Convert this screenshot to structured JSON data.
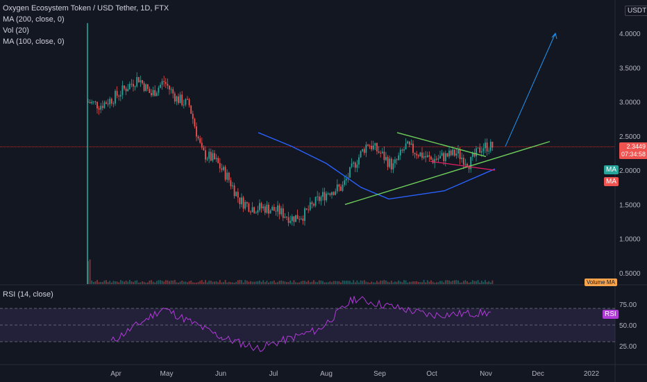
{
  "header": {
    "symbol_title": "Oxygen Ecosystem Token / USD Tether, 1D, FTX",
    "currency_label": "USDT"
  },
  "indicators": {
    "ma200": "MA (200, close, 0)",
    "vol": "Vol (20)",
    "ma100": "MA (100, close, 0)",
    "rsi": "RSI (14, close)"
  },
  "badges": {
    "ma_a": "MA",
    "ma_b": "MA",
    "rsi": "RSI",
    "volume_ma": "Volume MA"
  },
  "price_tag": {
    "price": "2.3449",
    "countdown": "07:34:58"
  },
  "colors": {
    "background": "#131722",
    "up": "#26a69a",
    "down": "#ef5350",
    "ma_blue": "#2962ff",
    "trend_green": "#6fd15a",
    "rsi_line": "#b13ad9",
    "arrow": "#2196f3"
  },
  "chart_data": [
    {
      "type": "candlestick",
      "series": [
        {
          "name": "Oxygen Ecosystem Token / USD Tether",
          "x": [
            "Mar 29",
            "Apr 5",
            "Apr 12",
            "Apr 19",
            "Apr 26",
            "May 3",
            "May 10",
            "May 17",
            "May 24",
            "May 31",
            "Jun 7",
            "Jun 14",
            "Jun 21",
            "Jun 28",
            "Jul 5",
            "Jul 12",
            "Jul 19",
            "Jul 26",
            "Aug 2",
            "Aug 9",
            "Aug 16",
            "Aug 23",
            "Aug 30",
            "Sep 6",
            "Sep 13",
            "Sep 20",
            "Sep 27",
            "Oct 4",
            "Oct 11",
            "Oct 18",
            "Oct 25",
            "Nov 1",
            "Nov 5"
          ],
          "close": [
            3.0,
            2.95,
            3.05,
            3.2,
            3.35,
            3.1,
            3.3,
            3.05,
            2.95,
            2.25,
            2.15,
            1.9,
            1.55,
            1.45,
            1.45,
            1.4,
            1.3,
            1.35,
            1.55,
            1.7,
            1.75,
            2.1,
            2.4,
            2.25,
            2.05,
            2.35,
            2.25,
            2.15,
            2.2,
            2.25,
            2.1,
            2.35,
            2.3449
          ]
        },
        {
          "name": "MA (200, close, 0)",
          "x": [
            "Jun 28",
            "Jul 19",
            "Aug 9",
            "Aug 30",
            "Sep 20",
            "Oct 11",
            "Nov 5"
          ],
          "y": [
            2.55,
            2.35,
            2.1,
            1.75,
            1.58,
            1.7,
            2.02
          ]
        },
        {
          "name": "Vol (20)"
        }
      ],
      "xticks": [
        "Apr",
        "May",
        "Jun",
        "Jul",
        "Aug",
        "Sep",
        "Oct",
        "Nov",
        "Dec",
        "2022"
      ],
      "yticks": [
        0.5,
        1.0,
        1.5,
        2.0,
        2.5,
        3.0,
        3.5,
        4.0
      ],
      "ylim": [
        0.3,
        4.2
      ],
      "last_price": 2.3449
    },
    {
      "type": "line",
      "series": [
        {
          "name": "RSI (14, close)",
          "x": [
            "Apr",
            "May",
            "Jun",
            "Jul",
            "Aug",
            "Sep",
            "Oct",
            "Nov"
          ],
          "y": [
            30,
            70,
            35,
            22,
            45,
            82,
            62,
            65
          ]
        }
      ],
      "yticks": [
        25.0,
        50.0,
        75.0
      ],
      "reference_lines": [
        30,
        50,
        70
      ]
    }
  ]
}
